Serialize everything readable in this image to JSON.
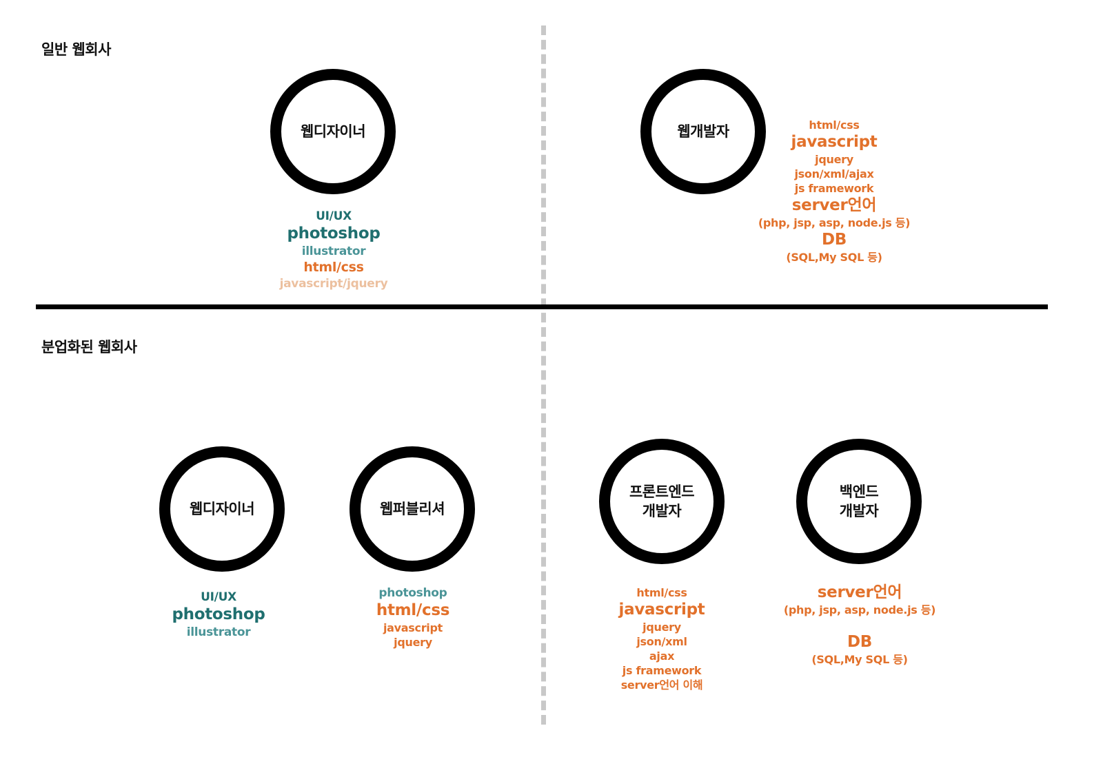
{
  "colors": {
    "dark_teal": "#1f6f6f",
    "teal": "#4a9497",
    "orange": "#e2712b",
    "light_orange": "#ecc09f",
    "divider": "#000000",
    "dashed": "#c8c8c8"
  },
  "sections": {
    "general_title": "일반 웹회사",
    "divided_title": "분업화된 웹회사"
  },
  "general": {
    "designer": {
      "label": "웹디자이너",
      "skills": [
        "UI/UX",
        "photoshop",
        "illustrator",
        "html/css",
        "javascript/jquery"
      ]
    },
    "developer": {
      "label": "웹개발자",
      "skills": [
        "html/css",
        "javascript",
        "jquery",
        "json/xml/ajax",
        "js framework",
        "server언어",
        "(php, jsp, asp, node.js 등)",
        "DB",
        "(SQL,My SQL 등)"
      ]
    }
  },
  "divided": {
    "designer": {
      "label": "웹디자이너",
      "skills": [
        "UI/UX",
        "photoshop",
        "illustrator"
      ]
    },
    "publisher": {
      "label": "웹퍼블리셔",
      "skills": [
        "photoshop",
        "html/css",
        "javascript",
        "jquery"
      ]
    },
    "frontend": {
      "label_line1": "프론트엔드",
      "label_line2": "개발자",
      "skills": [
        "html/css",
        "javascript",
        "jquery",
        "json/xml",
        "ajax",
        "js framework",
        "server언어 이해"
      ]
    },
    "backend": {
      "label_line1": "백엔드",
      "label_line2": "개발자",
      "skills": [
        "server언어",
        "(php, jsp, asp, node.js 등)",
        "DB",
        "(SQL,My SQL 등)"
      ]
    }
  }
}
